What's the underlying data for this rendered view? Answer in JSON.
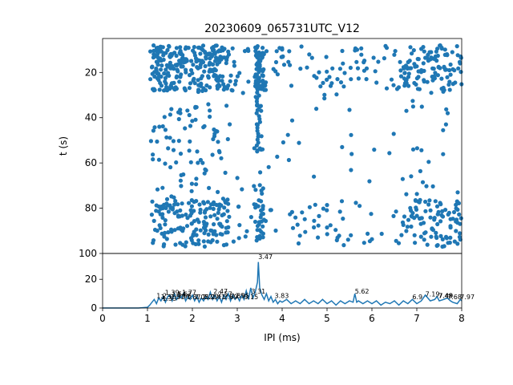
{
  "chart_data": [
    {
      "type": "scatter",
      "title": "20230609_065731UTC_V12",
      "xlabel": "",
      "ylabel": "t (s)",
      "xlim": [
        0,
        8
      ],
      "ylim": [
        100,
        5
      ],
      "y_inverted": true,
      "yticks": [
        20,
        40,
        60,
        80,
        100
      ],
      "color": "#1f77b4",
      "marker": "circle",
      "point_count_approx": 1000,
      "x_range_of_points": [
        1.05,
        8.0
      ],
      "y_range_of_points": [
        8,
        97
      ],
      "dense_x_regions": [
        [
          1.1,
          2.8
        ],
        [
          3.4,
          3.6
        ],
        [
          6.7,
          8.0
        ]
      ],
      "dense_y_bands": [
        [
          8,
          28
        ],
        [
          76,
          97
        ]
      ],
      "grid": false
    },
    {
      "type": "line",
      "xlabel": "IPI (ms)",
      "ylabel": "",
      "xlim": [
        0,
        8
      ],
      "ylim": [
        0,
        38
      ],
      "xticks": [
        0,
        1,
        2,
        3,
        4,
        5,
        6,
        7,
        8
      ],
      "yticks": [
        0,
        20
      ],
      "color": "#1f77b4",
      "x": [
        0,
        0.2,
        0.4,
        0.6,
        0.8,
        1.0,
        1.05,
        1.1,
        1.15,
        1.2,
        1.25,
        1.3,
        1.35,
        1.4,
        1.45,
        1.5,
        1.55,
        1.6,
        1.65,
        1.7,
        1.75,
        1.8,
        1.85,
        1.9,
        1.95,
        2.0,
        2.05,
        2.1,
        2.15,
        2.2,
        2.25,
        2.3,
        2.35,
        2.4,
        2.45,
        2.5,
        2.55,
        2.6,
        2.65,
        2.7,
        2.75,
        2.8,
        2.85,
        2.9,
        2.95,
        3.0,
        3.05,
        3.1,
        3.15,
        3.2,
        3.25,
        3.3,
        3.35,
        3.4,
        3.45,
        3.47,
        3.5,
        3.55,
        3.6,
        3.65,
        3.7,
        3.75,
        3.8,
        3.85,
        3.9,
        3.95,
        4.0,
        4.1,
        4.2,
        4.3,
        4.4,
        4.5,
        4.6,
        4.7,
        4.8,
        4.9,
        5.0,
        5.1,
        5.2,
        5.3,
        5.4,
        5.5,
        5.58,
        5.62,
        5.66,
        5.7,
        5.8,
        5.9,
        6.0,
        6.1,
        6.2,
        6.3,
        6.4,
        6.5,
        6.6,
        6.7,
        6.8,
        6.9,
        7.0,
        7.1,
        7.19,
        7.3,
        7.4,
        7.45,
        7.5,
        7.6,
        7.68,
        7.75,
        7.8,
        7.9,
        7.97,
        8.0
      ],
      "y": [
        0,
        0,
        0,
        0,
        0,
        0.5,
        2,
        4,
        6,
        3,
        7,
        5,
        8,
        4,
        8,
        9,
        5,
        10,
        6,
        9,
        7,
        10,
        5,
        8,
        6,
        9,
        5,
        8,
        4,
        7,
        5,
        8,
        6,
        11,
        6,
        9,
        5,
        8,
        4,
        9,
        6,
        10,
        5,
        9,
        6,
        8,
        5,
        9,
        6,
        12,
        6,
        14,
        7,
        11,
        18,
        32,
        14,
        9,
        6,
        10,
        5,
        8,
        4,
        6,
        3,
        5,
        4,
        6,
        3,
        5,
        3,
        6,
        3,
        5,
        3,
        6,
        3,
        5,
        2,
        5,
        3,
        5,
        4,
        10,
        4,
        5,
        3,
        5,
        3,
        5,
        2,
        4,
        3,
        5,
        2,
        5,
        3,
        6,
        3,
        5,
        9,
        5,
        6,
        8,
        5,
        6,
        7,
        5,
        4,
        3,
        6,
        5
      ],
      "peak_labels": [
        "1.2",
        "1.3",
        "1.39",
        "1.33",
        "1.51",
        "1.54",
        "1.66",
        "1.67",
        "1.77",
        "1.87",
        "2.05",
        "2.22",
        "2.27",
        "2.41",
        "2.47",
        "2.57",
        "2.69",
        "2.85",
        "2.95",
        "3.15",
        "3.31",
        "3.47",
        "3.83",
        "5.62",
        "6.9",
        "7.19",
        "7.48",
        "7.49",
        "7.68",
        "7.97"
      ],
      "peak_label_x": [
        1.2,
        1.3,
        1.39,
        1.33,
        1.51,
        1.54,
        1.66,
        1.67,
        1.77,
        1.87,
        2.05,
        2.22,
        2.27,
        2.41,
        2.47,
        2.57,
        2.69,
        2.85,
        2.95,
        3.15,
        3.31,
        3.47,
        3.83,
        5.62,
        6.9,
        7.19,
        7.48,
        7.49,
        7.68,
        7.97
      ],
      "peak_label_y": [
        6,
        5,
        8,
        4,
        5,
        7,
        6,
        7,
        8,
        5,
        5,
        5,
        5,
        5,
        9,
        7,
        5,
        6,
        6,
        5,
        9,
        33,
        6,
        9,
        5,
        7,
        6,
        6,
        5,
        5
      ],
      "grid": false
    }
  ]
}
